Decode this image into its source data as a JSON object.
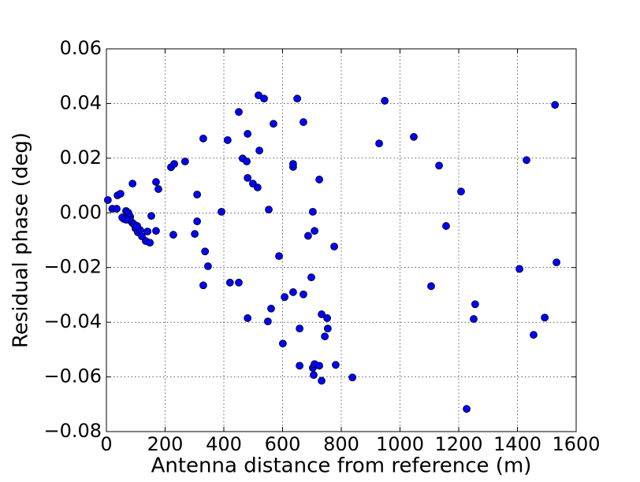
{
  "chart_data": {
    "type": "scatter",
    "x_label": "Antenna distance from reference (m)",
    "y_label": "Residual phase (deg)",
    "color": "#0000ff",
    "grid": true,
    "xlim": [
      0,
      1600
    ],
    "ylim": [
      -0.08,
      0.06
    ],
    "xticks": [
      0,
      200,
      400,
      600,
      800,
      1000,
      1200,
      1400,
      1600
    ],
    "yticks": [
      {
        "value": -0.08,
        "label": "−0.08"
      },
      {
        "value": -0.06,
        "label": "−0.06"
      },
      {
        "value": -0.04,
        "label": "−0.04"
      },
      {
        "value": -0.02,
        "label": "−0.02"
      },
      {
        "value": 0,
        "label": "0.00"
      },
      {
        "value": 0.02,
        "label": "0.02"
      },
      {
        "value": 0.04,
        "label": "0.04"
      },
      {
        "value": 0.06,
        "label": "0.06"
      }
    ],
    "x": [
      5,
      20,
      35,
      38,
      48,
      59,
      67,
      75,
      81,
      89,
      99,
      107,
      115,
      121,
      134,
      148,
      140,
      153,
      81,
      94,
      67,
      54,
      105,
      89,
      169,
      177,
      169,
      220,
      231,
      268,
      228,
      309,
      309,
      301,
      330,
      336,
      346,
      330,
      392,
      413,
      421,
      451,
      451,
      464,
      478,
      481,
      481,
      481,
      499,
      515,
      518,
      521,
      537,
      550,
      553,
      561,
      569,
      588,
      601,
      607,
      636,
      636,
      636,
      650,
      658,
      658,
      671,
      671,
      687,
      698,
      703,
      703,
      709,
      706,
      709,
      725,
      725,
      733,
      733,
      744,
      752,
      754,
      781,
      776,
      838,
      929,
      948,
      1047,
      1106,
      1133,
      1157,
      1208,
      1227,
      1251,
      1256,
      1407,
      1431,
      1455,
      1493,
      1528,
      1533
    ],
    "values": [
      0.0047,
      0.0015,
      0.0015,
      0.0064,
      0.007,
      -0.0022,
      0.0007,
      0,
      -0.0014,
      -0.0037,
      -0.0057,
      -0.0071,
      -0.0063,
      -0.0086,
      -0.0103,
      -0.0109,
      -0.0068,
      -0.0011,
      -0.0028,
      -0.0042,
      -0.0025,
      -0.0017,
      -0.0048,
      0.0107,
      0.0113,
      0.0087,
      -0.0066,
      0.0167,
      0.0179,
      0.0188,
      -0.008,
      0.0067,
      -0.0031,
      -0.0077,
      0.0272,
      -0.0141,
      -0.0195,
      -0.0265,
      0.0004,
      0.0266,
      -0.0255,
      -0.0255,
      0.0369,
      0.0199,
      0.0188,
      0.0289,
      0.0128,
      -0.0385,
      0.0107,
      0.0093,
      0.043,
      0.0228,
      0.0418,
      -0.0397,
      0.0012,
      -0.035,
      0.0326,
      -0.0158,
      -0.0478,
      -0.0308,
      0.0168,
      0.0179,
      -0.029,
      0.0418,
      -0.0423,
      -0.0559,
      0.0332,
      -0.0298,
      -0.0084,
      -0.0236,
      0.0004,
      -0.0567,
      -0.0066,
      -0.0593,
      -0.0553,
      0.0122,
      -0.0559,
      -0.0371,
      -0.0614,
      -0.0452,
      -0.0385,
      -0.0423,
      -0.0556,
      -0.0123,
      -0.0602,
      0.0254,
      0.041,
      0.0278,
      -0.0268,
      0.0173,
      -0.0048,
      0.0078,
      -0.0717,
      -0.0388,
      -0.0334,
      -0.0205,
      0.0193,
      -0.0446,
      -0.0383,
      0.0395,
      -0.0181
    ]
  }
}
